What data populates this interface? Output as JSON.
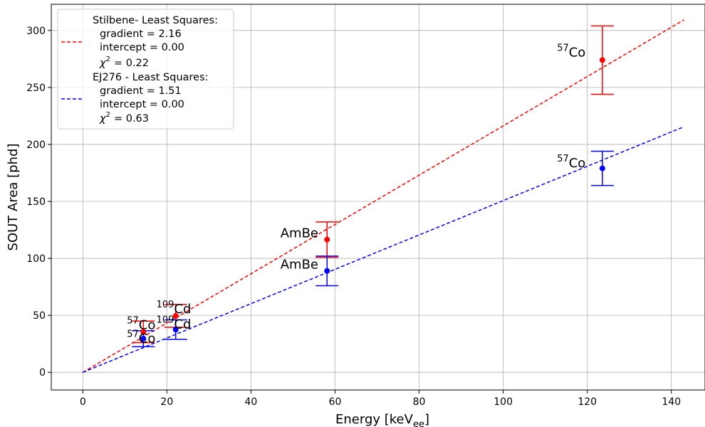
{
  "chart_data": {
    "type": "scatter",
    "xlabel": "Energy [keV",
    "xlabel_sub": "ee",
    "xlabel_end": "]",
    "ylabel": "SOUT Area [phd]",
    "xlim": [
      -7.5,
      148
    ],
    "ylim": [
      -15.5,
      323
    ],
    "xticks": [
      0,
      20,
      40,
      60,
      80,
      100,
      120,
      140
    ],
    "yticks": [
      0,
      50,
      100,
      150,
      200,
      250,
      300
    ],
    "grid": true,
    "legend_position": "top-left",
    "series": [
      {
        "color": "#ff0000",
        "fit": {
          "x": [
            0,
            143
          ],
          "y": [
            0,
            309.3
          ]
        },
        "legend": [
          "Stilbene- Least Squares:",
          "gradient = 2.16",
          "intercept = 0.00",
          "= 0.22"
        ],
        "points": [
          {
            "x": 14.4,
            "y": 35.5,
            "err": 9.5
          },
          {
            "x": 22.1,
            "y": 49.5,
            "err": 10
          },
          {
            "x": 58.1,
            "y": 116.5,
            "err": 15.5
          },
          {
            "x": 123.6,
            "y": 274,
            "err": 30
          }
        ]
      },
      {
        "color": "#0000ff",
        "fit": {
          "x": [
            0,
            143
          ],
          "y": [
            0,
            215.5
          ]
        },
        "legend": [
          "EJ276 - Least Squares:",
          "gradient = 1.51",
          "intercept = 0.00",
          "= 0.63"
        ],
        "points": [
          {
            "x": 14.4,
            "y": 29.5,
            "err": 7
          },
          {
            "x": 22.1,
            "y": 37.5,
            "err": 8.5
          },
          {
            "x": 58.1,
            "y": 89,
            "err": 13
          },
          {
            "x": 123.6,
            "y": 179,
            "err": 15
          }
        ]
      }
    ],
    "annotations": [
      {
        "text": "Cd",
        "sup": "109",
        "x": 17.5,
        "y": 52
      },
      {
        "text": "Co",
        "sup": "57",
        "x": 10.5,
        "y": 38
      },
      {
        "text": "Cd",
        "sup": "109",
        "x": 17.5,
        "y": 38.5
      },
      {
        "text": "Co",
        "sup": "57",
        "x": 10.5,
        "y": 26
      },
      {
        "text": "AmBe",
        "x": 47,
        "y": 118.5
      },
      {
        "text": "AmBe",
        "x": 47,
        "y": 91
      },
      {
        "text": "Co",
        "sup": "57",
        "x": 112.8,
        "y": 277
      },
      {
        "text": "Co",
        "sup": "57",
        "x": 112.8,
        "y": 180
      }
    ]
  }
}
